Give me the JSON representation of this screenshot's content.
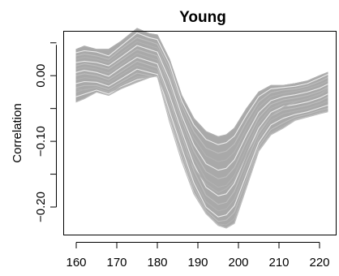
{
  "chart_data": {
    "type": "line",
    "title": "Young",
    "xlabel": "",
    "ylabel": "Correlation",
    "xlim": [
      157,
      224
    ],
    "ylim": [
      -0.242,
      0.067
    ],
    "xticks": [
      160,
      170,
      180,
      190,
      200,
      210,
      220
    ],
    "yticks": [
      0.0,
      -0.1,
      -0.2
    ],
    "ytick_labels": [
      "0.00",
      "−0.10",
      "−0.20"
    ],
    "grid": false,
    "line_color": "#a9a9a9",
    "x": [
      160,
      162,
      165,
      168,
      171,
      175,
      178,
      180,
      183,
      186,
      189,
      192,
      195,
      197,
      199,
      202,
      205,
      208,
      211,
      214,
      217,
      220,
      222
    ],
    "envelope": {
      "upper": [
        0.04,
        0.045,
        0.04,
        0.04,
        0.052,
        0.072,
        0.064,
        0.062,
        0.025,
        -0.03,
        -0.065,
        -0.085,
        -0.093,
        -0.09,
        -0.08,
        -0.05,
        -0.025,
        -0.015,
        -0.015,
        -0.012,
        -0.008,
        0.0,
        0.005
      ],
      "lower": [
        -0.04,
        -0.035,
        -0.025,
        -0.03,
        -0.02,
        -0.01,
        -0.003,
        0.0,
        -0.07,
        -0.13,
        -0.18,
        -0.21,
        -0.228,
        -0.232,
        -0.225,
        -0.17,
        -0.115,
        -0.09,
        -0.08,
        -0.068,
        -0.063,
        -0.058,
        -0.055
      ]
    },
    "series": [
      {
        "values": [
          0.04,
          0.045,
          0.04,
          0.04,
          0.052,
          0.072,
          0.064,
          0.062,
          0.025,
          -0.03,
          -0.065,
          -0.085,
          -0.093,
          -0.09,
          -0.08,
          -0.05,
          -0.025,
          -0.015,
          -0.015,
          -0.012,
          -0.008,
          0.0,
          0.005
        ]
      },
      {
        "values": [
          0.035,
          0.038,
          0.036,
          0.03,
          0.045,
          0.065,
          0.058,
          0.055,
          0.018,
          -0.038,
          -0.075,
          -0.097,
          -0.105,
          -0.102,
          -0.092,
          -0.06,
          -0.032,
          -0.02,
          -0.018,
          -0.016,
          -0.012,
          -0.004,
          0.002
        ]
      },
      {
        "values": [
          0.03,
          0.033,
          0.03,
          0.025,
          0.04,
          0.058,
          0.052,
          0.048,
          0.01,
          -0.045,
          -0.085,
          -0.11,
          -0.118,
          -0.115,
          -0.104,
          -0.07,
          -0.04,
          -0.026,
          -0.022,
          -0.02,
          -0.016,
          -0.009,
          -0.003
        ]
      },
      {
        "values": [
          0.025,
          0.028,
          0.025,
          0.02,
          0.034,
          0.052,
          0.046,
          0.042,
          0.002,
          -0.052,
          -0.095,
          -0.122,
          -0.131,
          -0.128,
          -0.116,
          -0.08,
          -0.048,
          -0.032,
          -0.027,
          -0.024,
          -0.02,
          -0.014,
          -0.008
        ]
      },
      {
        "values": [
          0.02,
          0.022,
          0.02,
          0.015,
          0.028,
          0.046,
          0.04,
          0.036,
          -0.006,
          -0.06,
          -0.105,
          -0.134,
          -0.144,
          -0.141,
          -0.128,
          -0.09,
          -0.056,
          -0.038,
          -0.032,
          -0.029,
          -0.025,
          -0.019,
          -0.013
        ]
      },
      {
        "values": [
          0.015,
          0.018,
          0.015,
          0.01,
          0.023,
          0.04,
          0.034,
          0.03,
          -0.014,
          -0.068,
          -0.115,
          -0.146,
          -0.157,
          -0.154,
          -0.14,
          -0.1,
          -0.064,
          -0.044,
          -0.037,
          -0.034,
          -0.03,
          -0.024,
          -0.018
        ]
      },
      {
        "values": [
          0.01,
          0.013,
          0.01,
          0.004,
          0.017,
          0.034,
          0.028,
          0.024,
          -0.022,
          -0.076,
          -0.125,
          -0.158,
          -0.17,
          -0.167,
          -0.152,
          -0.11,
          -0.072,
          -0.05,
          -0.042,
          -0.039,
          -0.035,
          -0.029,
          -0.023
        ]
      },
      {
        "values": [
          0.005,
          0.008,
          0.005,
          -0.001,
          0.012,
          0.028,
          0.022,
          0.018,
          -0.03,
          -0.084,
          -0.135,
          -0.17,
          -0.183,
          -0.18,
          -0.164,
          -0.12,
          -0.08,
          -0.056,
          -0.047,
          -0.044,
          -0.04,
          -0.034,
          -0.028
        ]
      },
      {
        "values": [
          0.0,
          0.003,
          0.0,
          -0.006,
          0.006,
          0.022,
          0.016,
          0.012,
          -0.038,
          -0.092,
          -0.145,
          -0.182,
          -0.196,
          -0.193,
          -0.176,
          -0.13,
          -0.088,
          -0.062,
          -0.052,
          -0.049,
          -0.045,
          -0.039,
          -0.033
        ]
      },
      {
        "values": [
          -0.006,
          -0.003,
          -0.005,
          -0.011,
          0.001,
          0.016,
          0.01,
          0.006,
          -0.046,
          -0.1,
          -0.155,
          -0.192,
          -0.206,
          -0.203,
          -0.188,
          -0.14,
          -0.095,
          -0.068,
          -0.058,
          -0.054,
          -0.05,
          -0.044,
          -0.039
        ]
      },
      {
        "values": [
          -0.012,
          -0.009,
          -0.01,
          -0.016,
          -0.005,
          0.01,
          0.005,
          0.002,
          -0.054,
          -0.11,
          -0.163,
          -0.2,
          -0.215,
          -0.212,
          -0.198,
          -0.15,
          -0.102,
          -0.075,
          -0.065,
          -0.059,
          -0.055,
          -0.049,
          -0.045
        ]
      },
      {
        "values": [
          -0.018,
          -0.015,
          -0.015,
          -0.021,
          -0.01,
          0.004,
          0.0,
          -0.002,
          -0.06,
          -0.118,
          -0.17,
          -0.205,
          -0.222,
          -0.22,
          -0.208,
          -0.158,
          -0.108,
          -0.082,
          -0.072,
          -0.063,
          -0.059,
          -0.053,
          -0.05
        ]
      },
      {
        "values": [
          -0.025,
          -0.021,
          -0.018,
          -0.025,
          -0.014,
          -0.002,
          -0.002,
          -0.001,
          -0.065,
          -0.124,
          -0.175,
          -0.208,
          -0.226,
          -0.227,
          -0.218,
          -0.164,
          -0.112,
          -0.087,
          -0.077,
          -0.066,
          -0.062,
          -0.056,
          -0.053
        ]
      },
      {
        "values": [
          -0.032,
          -0.028,
          -0.022,
          -0.028,
          -0.017,
          -0.006,
          -0.003,
          -0.001,
          -0.068,
          -0.128,
          -0.179,
          -0.21,
          -0.228,
          -0.232,
          -0.225,
          -0.17,
          -0.115,
          -0.09,
          -0.08,
          -0.068,
          -0.063,
          -0.058,
          -0.055
        ]
      },
      {
        "values": [
          -0.04,
          -0.035,
          -0.025,
          -0.03,
          -0.02,
          -0.01,
          -0.003,
          0.0,
          -0.07,
          -0.13,
          -0.18,
          -0.21,
          -0.228,
          -0.232,
          -0.225,
          -0.17,
          -0.115,
          -0.09,
          -0.08,
          -0.068,
          -0.063,
          -0.058,
          -0.055
        ]
      },
      {
        "values": [
          -0.02,
          -0.022,
          -0.018,
          -0.026,
          -0.018,
          -0.008,
          -0.002,
          0.0,
          -0.045,
          -0.105,
          -0.14,
          -0.165,
          -0.178,
          -0.172,
          -0.16,
          -0.12,
          -0.085,
          -0.062,
          -0.048,
          -0.04,
          -0.035,
          -0.028,
          -0.02
        ]
      }
    ]
  }
}
